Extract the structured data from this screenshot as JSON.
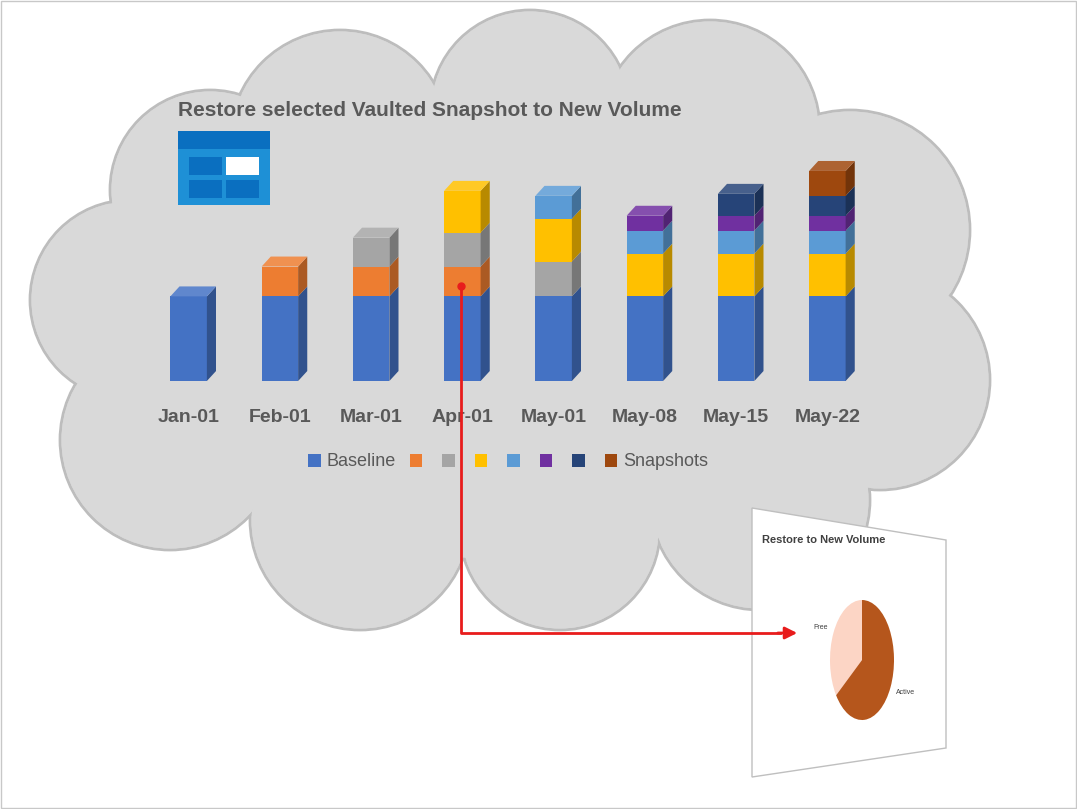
{
  "chart_data": [
    {
      "type": "bar",
      "title": "Restore selected Vaulted Snapshot to New Volume",
      "categories": [
        "Jan-01",
        "Feb-01",
        "Mar-01",
        "Apr-01",
        "May-01",
        "May-08",
        "May-15",
        "May-22"
      ],
      "stacked": true,
      "tick_labels": "x",
      "legend": "lower center",
      "series": [
        {
          "name": "Baseline",
          "color": "#4472c4",
          "values": [
            8.5,
            8.5,
            8.5,
            8.5,
            8.5,
            8.5,
            8.5,
            8.5
          ]
        },
        {
          "name": null,
          "color": "#ed7d31",
          "values": [
            null,
            3.0,
            3.0,
            3.0,
            null,
            null,
            null,
            null
          ]
        },
        {
          "name": null,
          "color": "#a5a5a5",
          "values": [
            null,
            null,
            2.9,
            3.4,
            3.5,
            null,
            null,
            null
          ]
        },
        {
          "name": null,
          "color": "#ffc000",
          "values": [
            null,
            null,
            null,
            4.2,
            4.3,
            4.3,
            4.3,
            4.3
          ]
        },
        {
          "name": null,
          "color": "#5b9bd5",
          "values": [
            null,
            null,
            null,
            null,
            2.3,
            2.3,
            2.3,
            2.3
          ]
        },
        {
          "name": null,
          "color": "#7030a0",
          "values": [
            null,
            null,
            null,
            null,
            null,
            1.5,
            1.5,
            1.5
          ]
        },
        {
          "name": null,
          "color": "#264478",
          "values": [
            null,
            null,
            null,
            null,
            null,
            null,
            2.2,
            2.0
          ]
        },
        {
          "name": "Snapshots",
          "color": "#9e480e",
          "values": [
            null,
            null,
            null,
            null,
            null,
            null,
            null,
            2.5
          ]
        }
      ]
    },
    {
      "type": "pie",
      "title": "Restore to New Volume",
      "categories": [
        "Free",
        "Active"
      ],
      "values": [
        35,
        65
      ],
      "colors": [
        "#fcd5c5",
        "#b5561c"
      ]
    }
  ]
}
